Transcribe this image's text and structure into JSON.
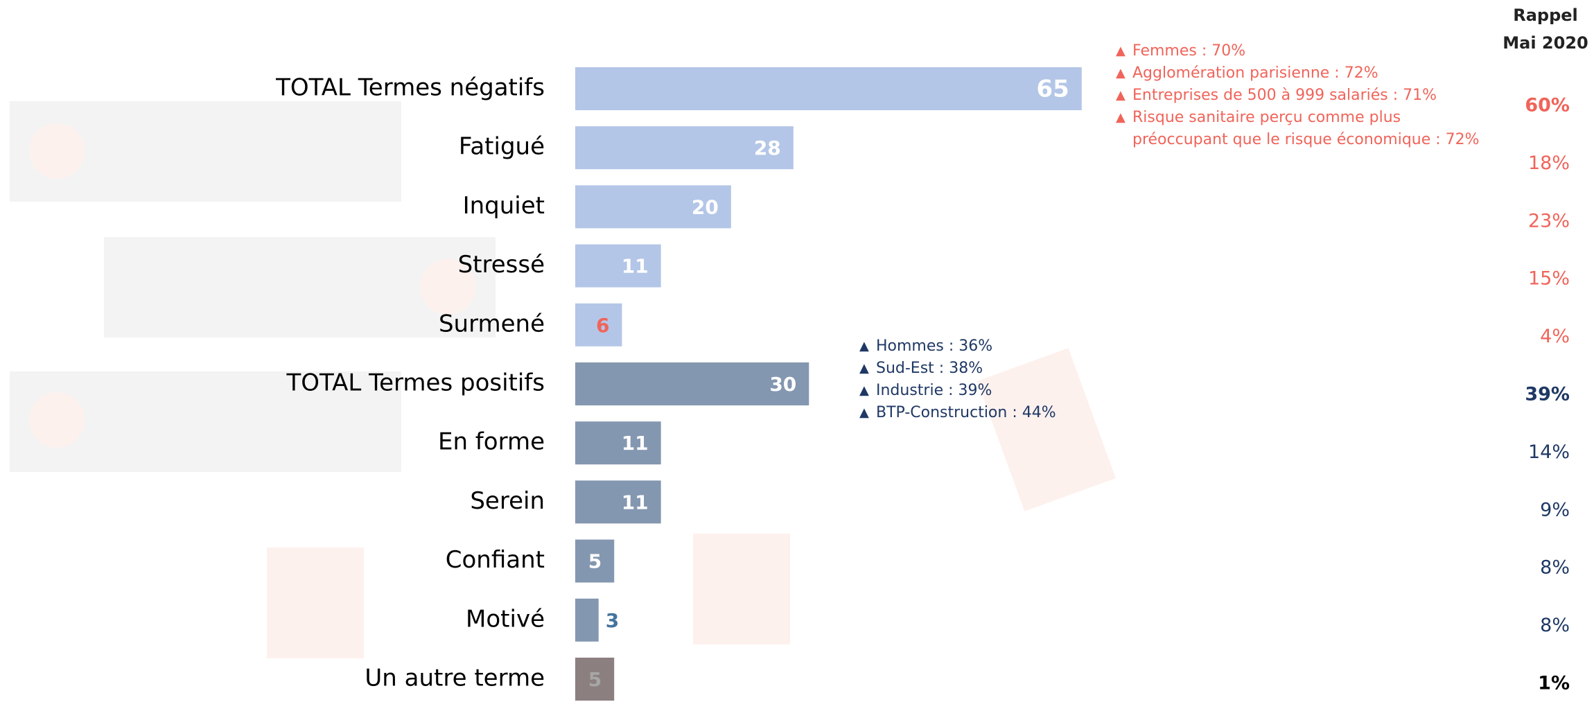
{
  "chart_data": {
    "type": "bar",
    "horizontal": true,
    "categories": [
      "TOTAL Termes négatifs",
      "Fatigué",
      "Inquiet",
      "Stressé",
      "Surmené",
      "TOTAL Termes positifs",
      "En forme",
      "Serein",
      "Confiant",
      "Motivé",
      "Un autre terme"
    ],
    "values": [
      65,
      28,
      20,
      11,
      6,
      30,
      11,
      11,
      5,
      3,
      5
    ],
    "colors": [
      "#b4c6e7",
      "#b4c6e7",
      "#b4c6e7",
      "#b4c6e7",
      "#b4c6e7",
      "#8497b0",
      "#8497b0",
      "#8497b0",
      "#8497b0",
      "#8497b0",
      "#8c7f7f"
    ],
    "label_colors": [
      "#ffffff",
      "#ffffff",
      "#ffffff",
      "#ffffff",
      "#f0645a",
      "#ffffff",
      "#ffffff",
      "#ffffff",
      "#ffffff",
      "#44749d",
      "#a6a6a6"
    ],
    "xlim": [
      0,
      70
    ],
    "recall": {
      "title": [
        "Rappel",
        "Mai 2020"
      ],
      "values": [
        60,
        18,
        23,
        15,
        4,
        39,
        14,
        9,
        8,
        8,
        1
      ],
      "value_labels": [
        "60%",
        "18%",
        "23%",
        "15%",
        "4%",
        "39%",
        "14%",
        "9%",
        "8%",
        "8%",
        "1%"
      ],
      "colors": [
        "#f0645a",
        "#f0645a",
        "#f0645a",
        "#f0645a",
        "#f0645a",
        "#1f3864",
        "#1f3864",
        "#1f3864",
        "#1f3864",
        "#1f3864",
        "#000000"
      ],
      "bold": [
        true,
        false,
        false,
        false,
        false,
        true,
        false,
        false,
        false,
        false,
        true
      ]
    },
    "annotations": [
      {
        "color": "#f0645a",
        "items": [
          "Femmes : 70%",
          "Agglomération parisienne : 72%",
          "Entreprises de 500 à 999 salariés : 71%",
          "Risque sanitaire perçu comme plus préoccupant que le risque économique : 72%"
        ]
      },
      {
        "color": "#1f3864",
        "items": [
          "Hommes : 36%",
          "Sud-Est : 38%",
          "Industrie : 39%",
          "BTP-Construction : 44%"
        ]
      }
    ]
  }
}
